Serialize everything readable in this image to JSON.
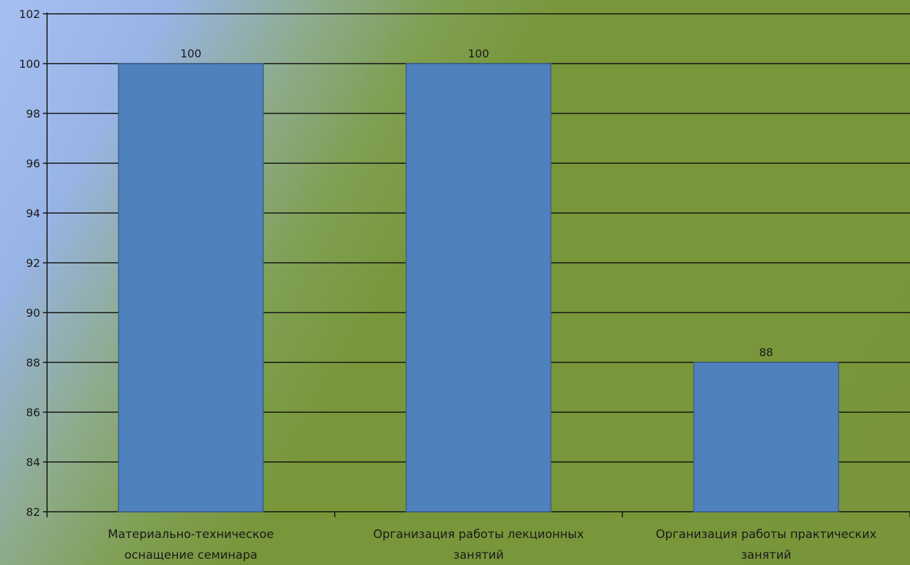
{
  "chart_data": {
    "type": "bar",
    "categories": [
      [
        "Материально-техническое",
        "оснащение семинара"
      ],
      [
        "Организация работы лекционных",
        "занятий"
      ],
      [
        "Организация работы практических",
        "занятий"
      ]
    ],
    "values": [
      100,
      100,
      88
    ],
    "data_labels": [
      "100",
      "100",
      "88"
    ],
    "ylim": [
      82,
      102
    ],
    "yticks": [
      82,
      84,
      86,
      88,
      90,
      92,
      94,
      96,
      98,
      100,
      102
    ],
    "grid": true,
    "legend": "none",
    "colors": {
      "bar": "#4f81bd",
      "bar_edge": "#3a5f8c",
      "grid": "#111111",
      "axis": "#111111"
    }
  }
}
